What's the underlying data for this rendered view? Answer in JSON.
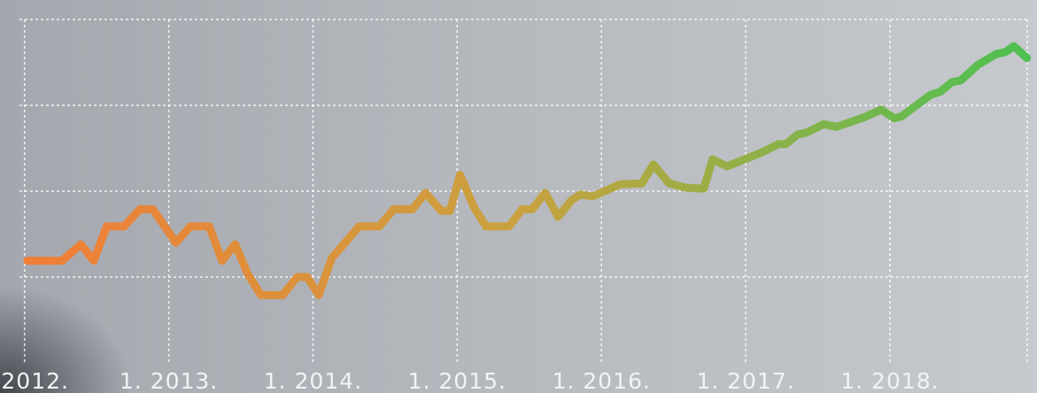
{
  "chart_data": {
    "type": "line",
    "xlim": [
      2011.83,
      2019.02
    ],
    "ylim": [
      0,
      4
    ],
    "xticks": [
      {
        "value": 2012,
        "label": "2012."
      },
      {
        "value": 2013,
        "label": "1. 2013."
      },
      {
        "value": 2014,
        "label": "1. 2014."
      },
      {
        "value": 2015,
        "label": "1. 2015."
      },
      {
        "value": 2016,
        "label": "1. 2016."
      },
      {
        "value": 2017,
        "label": "1. 2017."
      },
      {
        "value": 2018,
        "label": "1. 2018."
      }
    ],
    "yticks": [
      1,
      2,
      3,
      4
    ],
    "grid": true,
    "series": [
      {
        "colors": [
          "#f47b36",
          "#c9a23f",
          "#4cc152"
        ],
        "x": [
          2012.02,
          2012.26,
          2012.39,
          2012.48,
          2012.57,
          2012.69,
          2012.8,
          2012.89,
          2013.05,
          2013.15,
          2013.28,
          2013.37,
          2013.46,
          2013.55,
          2013.64,
          2013.79,
          2013.89,
          2013.96,
          2014.04,
          2014.13,
          2014.32,
          2014.46,
          2014.56,
          2014.69,
          2014.78,
          2014.89,
          2014.95,
          2015.02,
          2015.12,
          2015.2,
          2015.36,
          2015.45,
          2015.52,
          2015.61,
          2015.7,
          2015.79,
          2015.85,
          2015.94,
          2016.13,
          2016.28,
          2016.36,
          2016.47,
          2016.59,
          2016.71,
          2016.77,
          2016.87,
          2017.11,
          2017.23,
          2017.28,
          2017.36,
          2017.42,
          2017.54,
          2017.63,
          2017.82,
          2017.94,
          2018.03,
          2018.08,
          2018.28,
          2018.35,
          2018.43,
          2018.49,
          2018.61,
          2018.74,
          2018.8,
          2018.86,
          2018.95
        ],
        "values": [
          1.19,
          1.19,
          1.38,
          1.19,
          1.59,
          1.59,
          1.79,
          1.79,
          1.4,
          1.59,
          1.59,
          1.19,
          1.38,
          1.03,
          0.79,
          0.79,
          1.0,
          1.0,
          0.79,
          1.22,
          1.59,
          1.59,
          1.79,
          1.79,
          1.98,
          1.77,
          1.77,
          2.19,
          1.8,
          1.59,
          1.59,
          1.79,
          1.79,
          1.98,
          1.7,
          1.89,
          1.96,
          1.94,
          2.08,
          2.09,
          2.31,
          2.09,
          2.04,
          2.03,
          2.37,
          2.29,
          2.45,
          2.55,
          2.55,
          2.66,
          2.68,
          2.78,
          2.75,
          2.86,
          2.95,
          2.85,
          2.87,
          3.12,
          3.16,
          3.27,
          3.29,
          3.47,
          3.6,
          3.62,
          3.69,
          3.55
        ]
      }
    ]
  }
}
